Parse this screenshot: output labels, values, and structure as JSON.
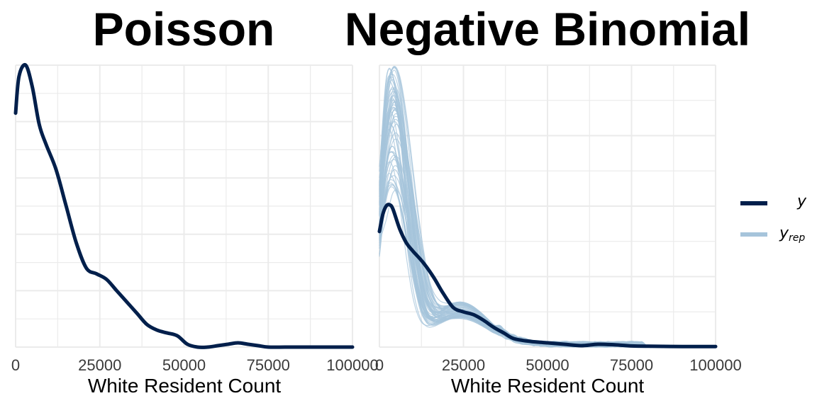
{
  "chart_data": [
    {
      "type": "line",
      "title": "Poisson",
      "xlabel": "White Resident Count",
      "ylabel": "",
      "xlim": [
        0,
        100000
      ],
      "xticks": [
        0,
        25000,
        50000,
        75000,
        100000
      ],
      "xtick_labels": [
        "0",
        "25000",
        "50000",
        "75000",
        "100000"
      ],
      "ylim": [
        0,
        1
      ],
      "grid": true,
      "series": [
        {
          "name": "y",
          "color": "#011f4b",
          "x": [
            0,
            1000,
            3000,
            5000,
            7000,
            9000,
            12000,
            15000,
            18000,
            21000,
            24000,
            27000,
            30000,
            33000,
            36000,
            39000,
            42000,
            45000,
            48000,
            51000,
            54000,
            57000,
            60000,
            63000,
            66000,
            69000,
            72000,
            75000,
            80000,
            85000,
            90000,
            100000
          ],
          "y": [
            0.83,
            0.96,
            1.0,
            0.92,
            0.79,
            0.72,
            0.63,
            0.5,
            0.37,
            0.28,
            0.26,
            0.24,
            0.2,
            0.16,
            0.12,
            0.08,
            0.06,
            0.05,
            0.04,
            0.01,
            0.0,
            0.0,
            0.005,
            0.01,
            0.015,
            0.01,
            0.005,
            0.0,
            0.0,
            0.0,
            0.0,
            0.0
          ]
        }
      ]
    },
    {
      "type": "line",
      "title": "Negative Binomial",
      "xlabel": "White Resident Count",
      "ylabel": "",
      "xlim": [
        0,
        100000
      ],
      "xticks": [
        0,
        25000,
        50000,
        75000,
        100000
      ],
      "xtick_labels": [
        "0",
        "25000",
        "50000",
        "75000",
        "100000"
      ],
      "ylim": [
        0,
        1
      ],
      "grid": true,
      "legend": "right",
      "series": [
        {
          "name": "y",
          "color": "#011f4b",
          "x": [
            0,
            1000,
            2000,
            3000,
            4000,
            6000,
            8000,
            10000,
            13000,
            16000,
            19000,
            22000,
            25000,
            28000,
            31000,
            34000,
            37000,
            40000,
            45000,
            50000,
            55000,
            60000,
            65000,
            70000,
            75000,
            80000,
            90000,
            100000
          ],
          "y": [
            0.41,
            0.47,
            0.5,
            0.505,
            0.49,
            0.42,
            0.37,
            0.34,
            0.3,
            0.25,
            0.19,
            0.14,
            0.125,
            0.115,
            0.095,
            0.07,
            0.05,
            0.03,
            0.02,
            0.015,
            0.01,
            0.005,
            0.01,
            0.008,
            0.004,
            0.003,
            0.002,
            0.002
          ]
        },
        {
          "name": "y_rep",
          "color": "#a6c4db"
        }
      ]
    }
  ],
  "legend": {
    "y_label": "y",
    "yrep_label": "y",
    "yrep_sub": "rep"
  }
}
